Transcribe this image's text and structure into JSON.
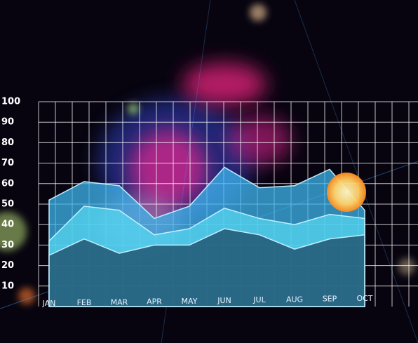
{
  "chart_data": {
    "type": "area",
    "categories": [
      "JAN",
      "FEB",
      "MAR",
      "APR",
      "MAY",
      "JUN",
      "JUL",
      "AUG",
      "SEP",
      "OCT"
    ],
    "series": [
      {
        "color": "#3fb6ee",
        "values": [
          52,
          61,
          59,
          43,
          49,
          68,
          58,
          59,
          67,
          47
        ]
      },
      {
        "color": "#57d7f2",
        "values": [
          32,
          49,
          47,
          35,
          38,
          48,
          43,
          40,
          45,
          43
        ]
      },
      {
        "color": "#1d4a66",
        "values": [
          25,
          33,
          26,
          30,
          30,
          38,
          35,
          28,
          33,
          35
        ]
      }
    ],
    "ylim": [
      0,
      100
    ],
    "yticks": [
      10,
      20,
      30,
      40,
      50,
      60,
      70,
      80,
      90,
      100
    ],
    "grid": true
  }
}
